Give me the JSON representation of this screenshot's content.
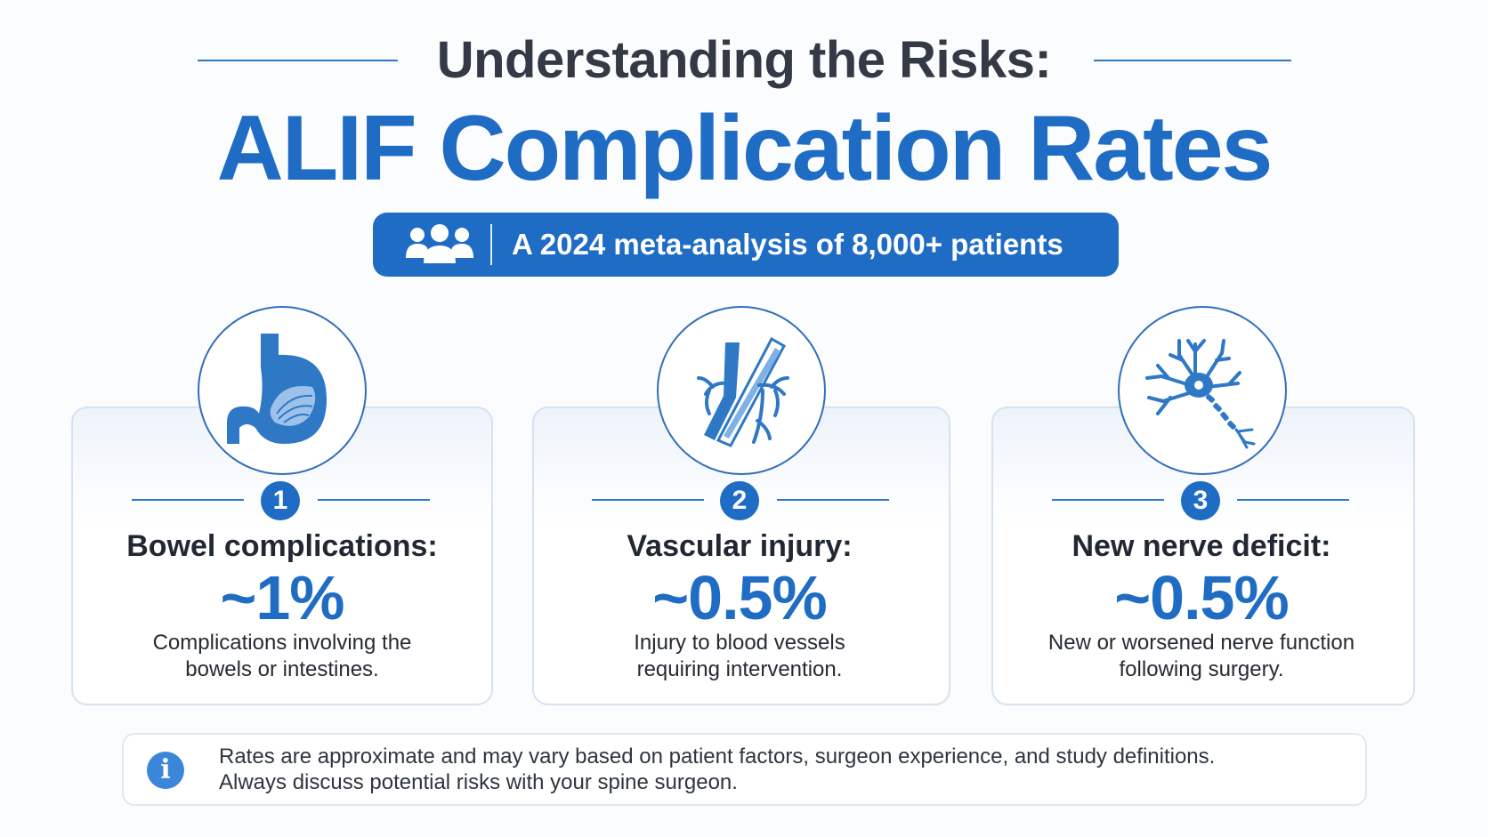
{
  "header": {
    "subtitle": "Understanding the Risks:",
    "title": "ALIF Complication Rates"
  },
  "badge": {
    "icon": "people-group-icon",
    "text": "A 2024 meta-analysis of 8,000+ patients"
  },
  "cards": [
    {
      "icon": "stomach-icon",
      "number": "1",
      "title": "Bowel complications:",
      "value": "~1%",
      "description_line1": "Complications involving the",
      "description_line2": "bowels or intestines."
    },
    {
      "icon": "blood-vessel-icon",
      "number": "2",
      "title": "Vascular injury:",
      "value": "~0.5%",
      "description_line1": "Injury to blood vessels",
      "description_line2": "requiring intervention."
    },
    {
      "icon": "neuron-icon",
      "number": "3",
      "title": "New nerve deficit:",
      "value": "~0.5%",
      "description_line1": "New or worsened nerve function",
      "description_line2": "following surgery."
    }
  ],
  "note": {
    "icon": "info-icon",
    "icon_glyph": "i",
    "line1": "Rates are approximate and may vary based on patient factors, surgeon experience, and study definitions.",
    "line2": "Always discuss potential risks with your spine surgeon."
  },
  "colors": {
    "accent": "#1f6cc4",
    "heading": "#333a45",
    "background": "#fbfcfe"
  }
}
